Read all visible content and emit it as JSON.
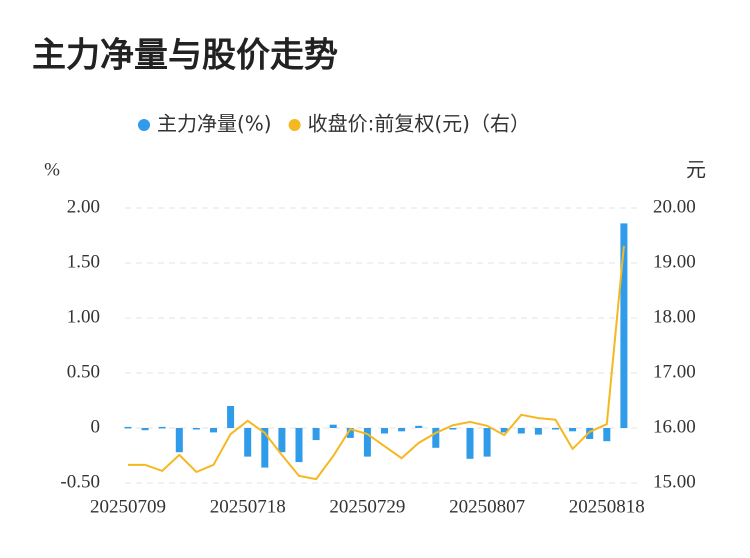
{
  "chart_data": {
    "type": "bar_line",
    "title": "主力净量与股价走势",
    "y_label": "%",
    "y2_label": "元",
    "categories": [
      "20250709",
      null,
      null,
      null,
      null,
      null,
      null,
      "20250718",
      null,
      null,
      null,
      null,
      null,
      null,
      "20250729",
      null,
      null,
      null,
      null,
      null,
      null,
      "20250807",
      null,
      null,
      null,
      null,
      null,
      null,
      "20250818",
      null
    ],
    "series": [
      {
        "name": "主力净量(%)",
        "type": "bar",
        "color": "#2f9be9",
        "values": [
          0.01,
          -0.02,
          0.01,
          -0.22,
          0,
          -0.04,
          0.2,
          -0.26,
          -0.36,
          -0.22,
          -0.31,
          -0.11,
          0.03,
          -0.09,
          -0.26,
          -0.05,
          -0.03,
          0.02,
          -0.18,
          -0.01,
          -0.28,
          -0.26,
          -0.04,
          -0.05,
          -0.06,
          -0.01,
          -0.03,
          -0.1,
          -0.12,
          1.86
        ]
      },
      {
        "name": "收盘价:前复权(元)（右）",
        "type": "line",
        "axis": "y2",
        "color": "#f5b820",
        "values": [
          15.33,
          15.33,
          15.22,
          15.51,
          15.2,
          15.33,
          15.89,
          16.13,
          15.91,
          15.51,
          15.13,
          15.07,
          15.49,
          15.98,
          15.89,
          15.67,
          15.45,
          15.73,
          15.91,
          16.05,
          16.11,
          16.04,
          15.87,
          16.24,
          16.18,
          16.15,
          15.62,
          15.93,
          16.07,
          19.31
        ]
      }
    ],
    "ylim": [
      -0.5,
      2
    ],
    "yticks": [
      {
        "value": -0.5,
        "label": "-0.50"
      },
      0,
      {
        "value": 0.5,
        "label": "0.50"
      },
      {
        "value": 1,
        "label": "1.00"
      },
      {
        "value": 1.5,
        "label": "1.50"
      },
      {
        "value": 2,
        "label": "2.00"
      }
    ],
    "y2lim": [
      15,
      20
    ],
    "y2ticks": [
      {
        "value": 15,
        "label": "15.00"
      },
      {
        "value": 16,
        "label": "16.00"
      },
      {
        "value": 17,
        "label": "17.00"
      },
      {
        "value": 18,
        "label": "18.00"
      },
      {
        "value": 19,
        "label": "19.00"
      },
      {
        "value": 20,
        "label": "20.00"
      }
    ],
    "grid": true,
    "legend": "top"
  }
}
